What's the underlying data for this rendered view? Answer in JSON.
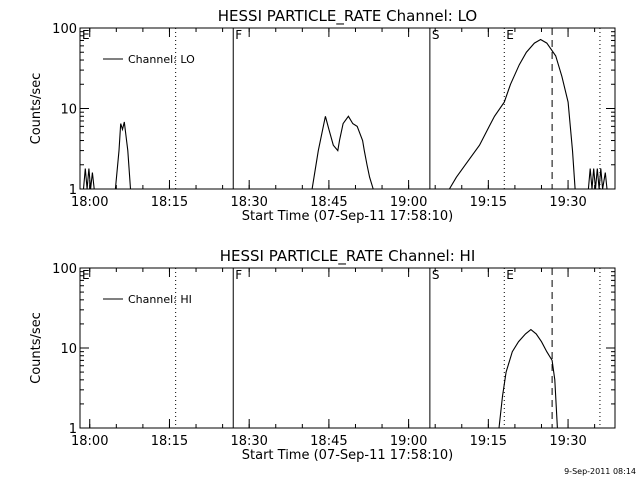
{
  "timestamp": "9-Sep-2011 08:14",
  "chart_data": [
    {
      "type": "line",
      "title": "HESSI PARTICLE_RATE Channel: LO",
      "xlabel": "Start Time (07-Sep-11 17:58:10)",
      "ylabel": "Counts/sec",
      "yscale": "log",
      "ylim": [
        1,
        100
      ],
      "xlim": [
        "17:58:10",
        "19:38:50"
      ],
      "xticks": [
        "18:00",
        "18:15",
        "18:30",
        "18:45",
        "19:00",
        "19:15",
        "19:30"
      ],
      "yticks": [
        "1",
        "10",
        "100"
      ],
      "legend": {
        "entries": [
          "Channel: LO"
        ],
        "position": "top-left"
      },
      "markers": [
        {
          "label": "E",
          "time": "17:58:10",
          "style": "none"
        },
        {
          "label": "",
          "time": "18:16:10",
          "style": "dotted"
        },
        {
          "label": "F",
          "time": "18:27:00",
          "style": "solid"
        },
        {
          "label": "S",
          "time": "19:04:00",
          "style": "solid"
        },
        {
          "label": "E",
          "time": "19:18:00",
          "style": "dotted"
        },
        {
          "label": "",
          "time": "19:27:00",
          "style": "dashed"
        },
        {
          "label": "",
          "time": "19:36:00",
          "style": "dotted"
        }
      ],
      "series": [
        {
          "name": "Channel: LO",
          "segments": [
            [
              [
                "17:58:50",
                1
              ],
              [
                "17:59:10",
                1.8
              ],
              [
                "17:59:30",
                1
              ],
              [
                "17:59:50",
                1.8
              ],
              [
                "18:00:10",
                1
              ],
              [
                "18:00:30",
                1.6
              ],
              [
                "18:00:50",
                1
              ]
            ],
            [
              [
                "18:04:50",
                1
              ],
              [
                "18:05:30",
                3
              ],
              [
                "18:05:50",
                6.5
              ],
              [
                "18:06:10",
                5.5
              ],
              [
                "18:06:30",
                6.8
              ],
              [
                "18:07:10",
                3
              ],
              [
                "18:07:40",
                1
              ]
            ],
            [
              [
                "18:41:50",
                1
              ],
              [
                "18:43:00",
                3
              ],
              [
                "18:44:20",
                8
              ],
              [
                "18:45:00",
                5.5
              ],
              [
                "18:45:50",
                3.5
              ],
              [
                "18:46:40",
                3
              ],
              [
                "18:47:00",
                4
              ],
              [
                "18:47:40",
                6.5
              ],
              [
                "18:48:40",
                8
              ],
              [
                "18:49:30",
                6.5
              ],
              [
                "18:50:20",
                6
              ],
              [
                "18:51:20",
                4
              ],
              [
                "18:51:40",
                3
              ],
              [
                "18:52:10",
                2
              ],
              [
                "18:52:40",
                1.4
              ],
              [
                "18:53:20",
                1
              ]
            ],
            [
              [
                "19:07:40",
                1
              ],
              [
                "19:09:00",
                1.4
              ],
              [
                "19:10:40",
                2
              ],
              [
                "19:13:20",
                3.5
              ],
              [
                "19:15:10",
                6
              ],
              [
                "19:16:10",
                8
              ],
              [
                "19:18:00",
                12
              ],
              [
                "19:19:10",
                20
              ],
              [
                "19:20:50",
                35
              ],
              [
                "19:22:10",
                50
              ],
              [
                "19:23:40",
                65
              ],
              [
                "19:24:50",
                72
              ],
              [
                "19:26:00",
                65
              ],
              [
                "19:27:40",
                45
              ],
              [
                "19:28:50",
                25
              ],
              [
                "19:30:00",
                12
              ],
              [
                "19:30:50",
                3
              ],
              [
                "19:31:20",
                1
              ]
            ],
            [
              [
                "19:33:50",
                1
              ],
              [
                "19:34:10",
                1.8
              ],
              [
                "19:34:30",
                1
              ],
              [
                "19:34:50",
                1.8
              ],
              [
                "19:35:10",
                1
              ],
              [
                "19:35:30",
                1.8
              ],
              [
                "19:35:50",
                1
              ],
              [
                "19:36:10",
                1.8
              ],
              [
                "19:36:30",
                1
              ],
              [
                "19:37:00",
                1.6
              ],
              [
                "19:37:20",
                1
              ]
            ]
          ]
        }
      ]
    },
    {
      "type": "line",
      "title": "HESSI PARTICLE_RATE Channel: HI",
      "xlabel": "Start Time (07-Sep-11 17:58:10)",
      "ylabel": "Counts/sec",
      "yscale": "log",
      "ylim": [
        1,
        100
      ],
      "xlim": [
        "17:58:10",
        "19:38:50"
      ],
      "xticks": [
        "18:00",
        "18:15",
        "18:30",
        "18:45",
        "19:00",
        "19:15",
        "19:30"
      ],
      "yticks": [
        "1",
        "10",
        "100"
      ],
      "legend": {
        "entries": [
          "Channel: HI"
        ],
        "position": "top-left"
      },
      "markers": [
        {
          "label": "E",
          "time": "17:58:10",
          "style": "none"
        },
        {
          "label": "",
          "time": "18:16:10",
          "style": "dotted"
        },
        {
          "label": "F",
          "time": "18:27:00",
          "style": "solid"
        },
        {
          "label": "S",
          "time": "19:04:00",
          "style": "solid"
        },
        {
          "label": "E",
          "time": "19:18:00",
          "style": "dotted"
        },
        {
          "label": "",
          "time": "19:27:00",
          "style": "dashed"
        },
        {
          "label": "",
          "time": "19:36:00",
          "style": "dotted"
        }
      ],
      "series": [
        {
          "name": "Channel: HI",
          "segments": [
            [
              [
                "19:17:00",
                1
              ],
              [
                "19:17:40",
                2.5
              ],
              [
                "19:18:20",
                5
              ],
              [
                "19:19:30",
                9
              ],
              [
                "19:20:40",
                12
              ],
              [
                "19:22:00",
                15
              ],
              [
                "19:23:00",
                17
              ],
              [
                "19:24:00",
                15
              ],
              [
                "19:25:00",
                12
              ],
              [
                "19:26:00",
                9
              ],
              [
                "19:27:00",
                7
              ],
              [
                "19:27:30",
                4
              ],
              [
                "19:28:00",
                1
              ]
            ]
          ]
        }
      ]
    }
  ]
}
